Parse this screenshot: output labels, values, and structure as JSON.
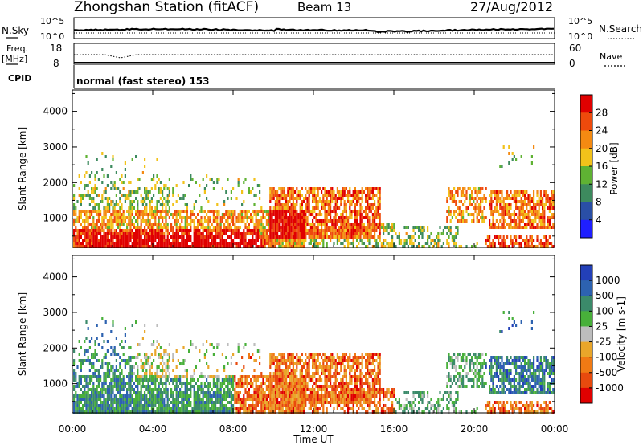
{
  "header": {
    "station": "Zhongshan Station (fitACF)",
    "beam": "Beam 13",
    "date": "27/Aug/2012"
  },
  "noise_panel": {
    "left_label": "N.Sky",
    "right_label": "N.Search",
    "ticks": [
      "10^5",
      "10^0"
    ]
  },
  "freq_panel": {
    "left_label": "Freq.",
    "units": "[MHz]",
    "left_ticks": [
      "18",
      "8"
    ],
    "right_label": "Nave",
    "right_ticks": [
      "60",
      "0"
    ]
  },
  "cpid": {
    "label": "CPID",
    "text": "normal (fast stereo) 153"
  },
  "x_axis": {
    "label": "Time UT",
    "ticks": [
      "00:00",
      "04:00",
      "08:00",
      "12:00",
      "16:00",
      "20:00",
      "00:00"
    ]
  },
  "colors": {
    "power": [
      "#1f1fff",
      "#2a4fa6",
      "#3d8a5e",
      "#5fb233",
      "#f2c21a",
      "#f48a12",
      "#ee4a0c",
      "#e00000"
    ],
    "velocity": [
      "#2340b8",
      "#2d62b0",
      "#3b8a6a",
      "#48b03a",
      "#bdbdbd",
      "#e9a62a",
      "#f07a14",
      "#e84a0e",
      "#e00000"
    ]
  },
  "chart_data": [
    {
      "type": "heatmap",
      "title": "Power",
      "xlabel": "Time UT",
      "ylabel": "Slant Range [km]",
      "xlim": [
        "00:00",
        "24:00"
      ],
      "ylim": [
        180,
        4600
      ],
      "y_ticks": [
        1000,
        2000,
        3000,
        4000
      ],
      "colorbar": {
        "label": "Power [dB]",
        "range": [
          0,
          32
        ],
        "ticks": [
          "4",
          "8",
          "12",
          "16",
          "20",
          "24",
          "28"
        ]
      }
    },
    {
      "type": "heatmap",
      "title": "Velocity",
      "xlabel": "Time UT",
      "ylabel": "Slant Range [km]",
      "xlim": [
        "00:00",
        "24:00"
      ],
      "ylim": [
        180,
        4600
      ],
      "y_ticks": [
        1000,
        2000,
        3000,
        4000
      ],
      "colorbar": {
        "label": "Velocity [m s-1]",
        "ticks": [
          "1000",
          "500",
          "100",
          "25",
          "-25",
          "-100",
          "-500",
          "-1000"
        ]
      }
    }
  ]
}
